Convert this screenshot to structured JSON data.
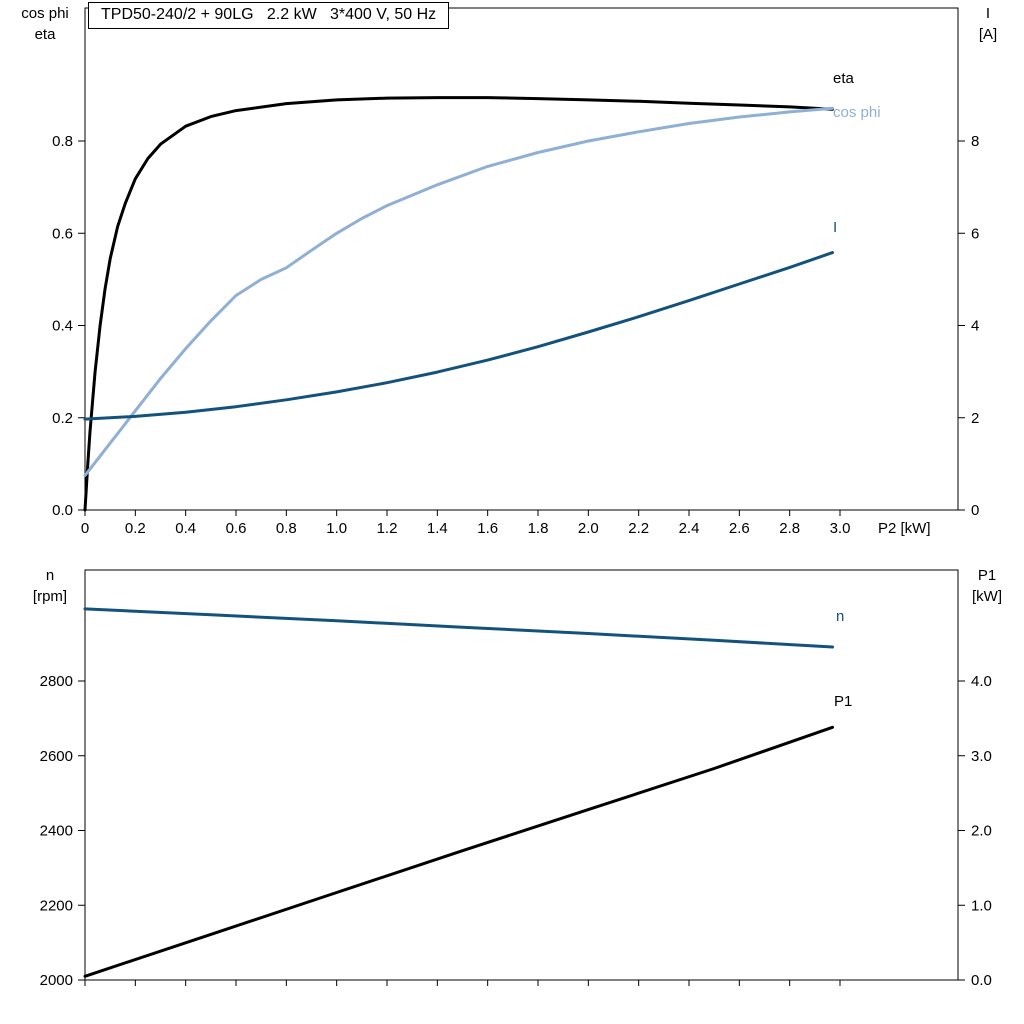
{
  "title_box": "TPD50-240/2 + 90LG   2.2 kW   3*400 V, 50 Hz",
  "colors": {
    "black": "#000000",
    "light_blue": "#8fb0d4",
    "dark_blue": "#14527e",
    "frame": "#000000"
  },
  "chart_data": [
    {
      "type": "line",
      "title": "TPD50-240/2 + 90LG   2.2 kW   3*400 V, 50 Hz",
      "xlabel": "P2 [kW]",
      "x_ticks": {
        "values": [
          0,
          0.2,
          0.4,
          0.6,
          0.8,
          1.0,
          1.2,
          1.4,
          1.6,
          1.8,
          2.0,
          2.2,
          2.4,
          2.6,
          2.8,
          3.0
        ],
        "labels": [
          "0",
          "0.2",
          "0.4",
          "0.6",
          "0.8",
          "1.0",
          "1.2",
          "1.4",
          "1.6",
          "1.8",
          "2.0",
          "2.2",
          "2.4",
          "2.6",
          "2.8",
          "3.0"
        ]
      },
      "y_left": {
        "title": [
          "cos phi",
          "eta"
        ],
        "ticks": [
          0,
          0.2,
          0.4,
          0.6,
          0.8
        ],
        "tick_labels": [
          "0.0",
          "0.2",
          "0.4",
          "0.6",
          "0.8"
        ],
        "range": [
          0,
          1.088
        ],
        "grid": false
      },
      "y_right": {
        "title": [
          "I",
          "[A]"
        ],
        "ticks": [
          0,
          2,
          4,
          6,
          8
        ],
        "tick_labels": [
          "0",
          "2",
          "4",
          "6",
          "8"
        ],
        "range": [
          0,
          10.88
        ]
      },
      "series": [
        {
          "name": "eta",
          "axis": "left",
          "color": "#000000",
          "x": [
            0,
            0.01,
            0.02,
            0.04,
            0.06,
            0.08,
            0.1,
            0.13,
            0.16,
            0.2,
            0.25,
            0.3,
            0.4,
            0.5,
            0.6,
            0.8,
            1.0,
            1.2,
            1.4,
            1.6,
            1.8,
            2.0,
            2.2,
            2.4,
            2.6,
            2.8,
            2.97
          ],
          "y": [
            0,
            0.09,
            0.17,
            0.3,
            0.4,
            0.48,
            0.545,
            0.615,
            0.665,
            0.718,
            0.762,
            0.793,
            0.832,
            0.853,
            0.866,
            0.881,
            0.889,
            0.893,
            0.894,
            0.894,
            0.892,
            0.889,
            0.886,
            0.882,
            0.878,
            0.874,
            0.869
          ]
        },
        {
          "name": "cos phi",
          "axis": "left",
          "color": "#8fb0d4",
          "x": [
            0,
            0.05,
            0.1,
            0.15,
            0.2,
            0.25,
            0.3,
            0.4,
            0.5,
            0.6,
            0.7,
            0.8,
            0.9,
            1.0,
            1.1,
            1.2,
            1.4,
            1.6,
            1.8,
            2.0,
            2.2,
            2.4,
            2.6,
            2.8,
            2.97
          ],
          "y": [
            0.075,
            0.11,
            0.145,
            0.18,
            0.215,
            0.25,
            0.285,
            0.35,
            0.41,
            0.465,
            0.5,
            0.525,
            0.563,
            0.6,
            0.632,
            0.66,
            0.705,
            0.745,
            0.775,
            0.8,
            0.82,
            0.838,
            0.852,
            0.863,
            0.871
          ]
        },
        {
          "name": "I",
          "axis": "right",
          "color": "#14527e",
          "x": [
            0,
            0.2,
            0.4,
            0.6,
            0.8,
            1.0,
            1.2,
            1.4,
            1.6,
            1.8,
            2.0,
            2.2,
            2.4,
            2.6,
            2.8,
            2.97
          ],
          "y": [
            1.97,
            2.03,
            2.12,
            2.24,
            2.39,
            2.56,
            2.76,
            2.99,
            3.25,
            3.54,
            3.86,
            4.19,
            4.54,
            4.9,
            5.26,
            5.58
          ]
        }
      ]
    },
    {
      "type": "line",
      "xlabel": "",
      "x_ticks": {
        "values": [
          0,
          0.2,
          0.4,
          0.6,
          0.8,
          1.0,
          1.2,
          1.4,
          1.6,
          1.8,
          2.0,
          2.2,
          2.4,
          2.6,
          2.8,
          3.0
        ],
        "labels": []
      },
      "y_left": {
        "title": [
          "n",
          "[rpm]"
        ],
        "ticks": [
          2000,
          2200,
          2400,
          2600,
          2800
        ],
        "tick_labels": [
          "2000",
          "2200",
          "2400",
          "2600",
          "2800"
        ],
        "range": [
          2000,
          3097
        ],
        "grid": false
      },
      "y_right": {
        "title": [
          "P1",
          "[kW]"
        ],
        "ticks": [
          0,
          1,
          2,
          3,
          4
        ],
        "tick_labels": [
          "0.0",
          "1.0",
          "2.0",
          "3.0",
          "4.0"
        ],
        "range": [
          0,
          5.48
        ]
      },
      "series": [
        {
          "name": "n",
          "axis": "left",
          "color": "#14527e",
          "x": [
            0,
            0.5,
            1.0,
            1.5,
            2.0,
            2.5,
            2.97
          ],
          "y": [
            2993,
            2977,
            2961,
            2944,
            2927,
            2909,
            2891
          ]
        },
        {
          "name": "P1",
          "axis": "right",
          "color": "#000000",
          "x": [
            0,
            0.5,
            1.0,
            1.5,
            2.0,
            2.5,
            2.97
          ],
          "y": [
            0.05,
            0.61,
            1.17,
            1.73,
            2.28,
            2.83,
            3.38
          ]
        }
      ]
    }
  ]
}
